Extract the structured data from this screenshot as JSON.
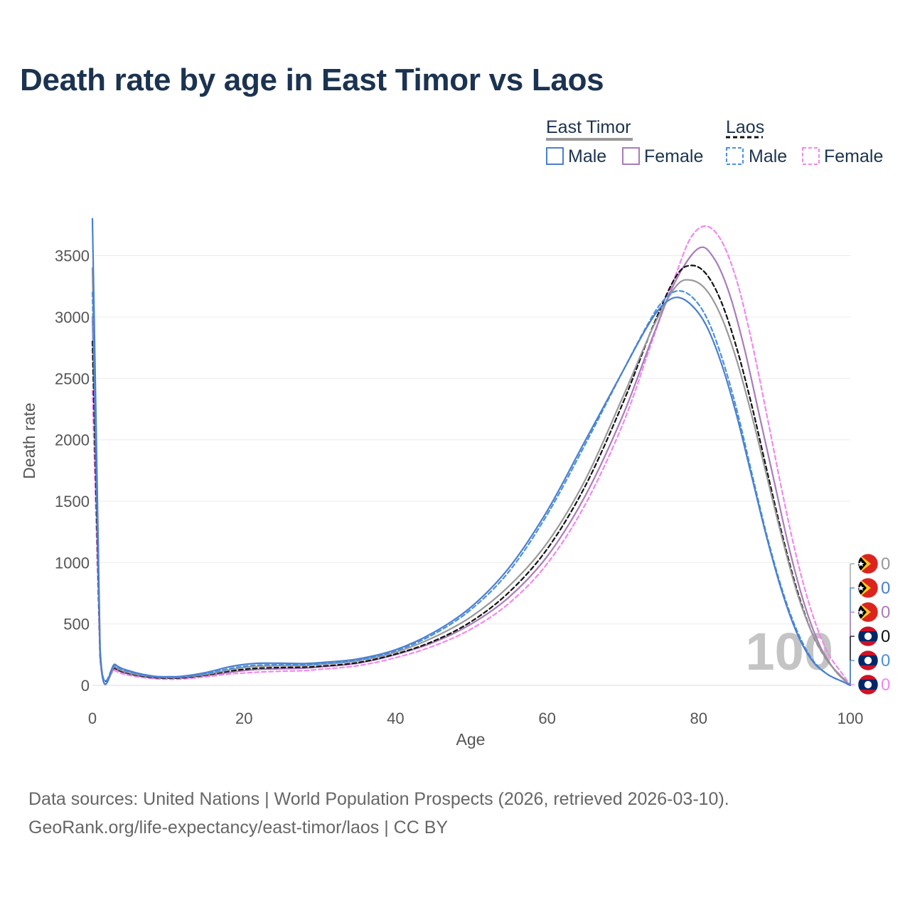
{
  "title": "Death rate by age in East Timor vs Laos",
  "source_line1": "Data sources: United Nations | World Population Prospects (2026, retrieved 2026-03-10).",
  "source_line2": "GeoRank.org/life-expectancy/east-timor/laos | CC BY",
  "legend": {
    "group1": "East Timor",
    "group2": "Laos",
    "male": "Male",
    "female": "Female"
  },
  "watermark_age": "100",
  "colors": {
    "et_male": "#4a7fd0",
    "et_female": "#a87cba",
    "et_total": "#999999",
    "la_male": "#4a90e2",
    "la_female": "#f386f0",
    "la_total": "#111111",
    "title": "#1b3350"
  },
  "chart_data": {
    "type": "line",
    "title": "Death rate by age in East Timor vs Laos",
    "xlabel": "Age",
    "ylabel": "Death rate",
    "xlim": [
      0,
      100
    ],
    "ylim": [
      0,
      3800
    ],
    "x_ticks": [
      0,
      20,
      40,
      60,
      80,
      100
    ],
    "y_ticks": [
      0,
      500,
      1000,
      1500,
      2000,
      2500,
      3000,
      3500
    ],
    "grid": true,
    "legend_position": "top-right",
    "series": [
      {
        "name": "East Timor Total",
        "key": "et_total",
        "dash": false,
        "x": [
          0,
          1,
          3,
          5,
          8,
          10,
          12,
          15,
          18,
          20,
          22,
          25,
          28,
          30,
          35,
          40,
          45,
          50,
          55,
          60,
          65,
          70,
          74,
          77,
          79,
          81,
          83,
          85,
          87,
          89,
          91,
          93,
          95,
          97,
          99,
          100
        ],
        "y": [
          3400,
          280,
          150,
          100,
          70,
          65,
          68,
          90,
          125,
          145,
          155,
          160,
          162,
          170,
          200,
          270,
          390,
          560,
          810,
          1160,
          1670,
          2350,
          2920,
          3250,
          3300,
          3220,
          3000,
          2650,
          2200,
          1700,
          1200,
          750,
          420,
          200,
          60,
          0
        ],
        "end_value": "0"
      },
      {
        "name": "East Timor Male",
        "key": "et_male",
        "dash": false,
        "x": [
          0,
          1,
          3,
          5,
          8,
          10,
          12,
          15,
          18,
          20,
          22,
          25,
          28,
          30,
          35,
          40,
          45,
          50,
          55,
          60,
          65,
          70,
          73,
          75,
          77,
          79,
          81,
          83,
          85,
          87,
          89,
          91,
          93,
          95,
          97,
          99,
          100
        ],
        "y": [
          3800,
          310,
          170,
          115,
          75,
          70,
          75,
          105,
          150,
          170,
          180,
          180,
          178,
          185,
          215,
          290,
          430,
          640,
          960,
          1420,
          1990,
          2560,
          2900,
          3080,
          3160,
          3100,
          2930,
          2620,
          2200,
          1700,
          1200,
          760,
          420,
          200,
          90,
          30,
          0
        ],
        "end_value": "0"
      },
      {
        "name": "East Timor Female",
        "key": "et_female",
        "dash": false,
        "x": [
          0,
          1,
          3,
          5,
          8,
          10,
          12,
          15,
          18,
          20,
          22,
          25,
          28,
          30,
          35,
          40,
          45,
          50,
          55,
          60,
          65,
          70,
          74,
          77,
          80,
          82,
          84,
          86,
          88,
          90,
          92,
          94,
          96,
          98,
          100
        ],
        "y": [
          3000,
          250,
          135,
          90,
          62,
          58,
          62,
          80,
          105,
          120,
          130,
          135,
          140,
          150,
          180,
          250,
          350,
          500,
          720,
          1050,
          1540,
          2200,
          2850,
          3300,
          3560,
          3480,
          3200,
          2750,
          2200,
          1650,
          1100,
          650,
          320,
          120,
          0
        ],
        "end_value": "0"
      },
      {
        "name": "Laos Total",
        "key": "la_total",
        "dash": true,
        "x": [
          0,
          1,
          3,
          5,
          8,
          10,
          12,
          15,
          18,
          20,
          22,
          25,
          28,
          30,
          35,
          40,
          45,
          50,
          55,
          60,
          65,
          70,
          74,
          77,
          79,
          81,
          83,
          85,
          87,
          89,
          91,
          93,
          95,
          97,
          99,
          100
        ],
        "y": [
          2800,
          260,
          140,
          95,
          65,
          60,
          62,
          85,
          115,
          130,
          140,
          145,
          148,
          155,
          185,
          255,
          360,
          520,
          760,
          1110,
          1620,
          2300,
          2930,
          3330,
          3420,
          3350,
          3120,
          2750,
          2280,
          1750,
          1230,
          770,
          420,
          200,
          60,
          0
        ],
        "end_value": "0"
      },
      {
        "name": "Laos Male",
        "key": "la_male",
        "dash": true,
        "x": [
          0,
          1,
          3,
          5,
          8,
          10,
          12,
          15,
          18,
          20,
          22,
          25,
          28,
          30,
          35,
          40,
          45,
          50,
          55,
          60,
          65,
          70,
          73,
          75,
          77,
          79,
          81,
          83,
          85,
          87,
          89,
          91,
          93,
          95,
          97,
          99,
          100
        ],
        "y": [
          3200,
          290,
          160,
          108,
          72,
          66,
          70,
          95,
          135,
          155,
          165,
          168,
          168,
          175,
          205,
          280,
          415,
          620,
          930,
          1390,
          1960,
          2560,
          2910,
          3110,
          3210,
          3170,
          3000,
          2680,
          2250,
          1730,
          1220,
          780,
          440,
          210,
          90,
          30,
          0
        ],
        "end_value": "0"
      },
      {
        "name": "Laos Female",
        "key": "la_female",
        "dash": true,
        "x": [
          0,
          1,
          3,
          5,
          8,
          10,
          12,
          15,
          18,
          20,
          22,
          25,
          28,
          30,
          35,
          40,
          45,
          50,
          55,
          60,
          65,
          70,
          74,
          77,
          79,
          81,
          83,
          85,
          87,
          89,
          91,
          93,
          95,
          97,
          99,
          100
        ],
        "y": [
          2400,
          230,
          120,
          80,
          55,
          50,
          52,
          70,
          92,
          100,
          108,
          115,
          120,
          130,
          160,
          225,
          320,
          460,
          670,
          990,
          1470,
          2130,
          2830,
          3350,
          3650,
          3740,
          3620,
          3300,
          2800,
          2200,
          1580,
          1020,
          580,
          270,
          90,
          0
        ],
        "end_value": "0"
      }
    ],
    "end_labels_order": [
      "et_total",
      "et_male",
      "et_female",
      "la_total",
      "la_male",
      "la_female"
    ]
  }
}
